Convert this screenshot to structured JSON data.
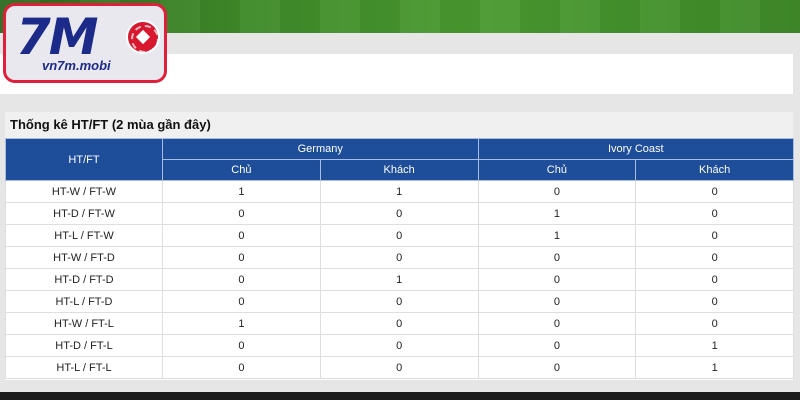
{
  "logo": {
    "mark": "7M",
    "domain": "vn7m.mobi"
  },
  "panel": {
    "title": "Thống kê HT/FT (2 mùa gần đây)"
  },
  "table": {
    "row_header": "HT/FT",
    "teams": [
      "Germany",
      "Ivory Coast"
    ],
    "sub_headers": [
      "Chủ",
      "Khách",
      "Chủ",
      "Khách"
    ],
    "rows": [
      {
        "label": "HT-W / FT-W",
        "values": [
          "1",
          "1",
          "0",
          "0"
        ]
      },
      {
        "label": "HT-D / FT-W",
        "values": [
          "0",
          "0",
          "1",
          "0"
        ]
      },
      {
        "label": "HT-L / FT-W",
        "values": [
          "0",
          "0",
          "1",
          "0"
        ]
      },
      {
        "label": "HT-W / FT-D",
        "values": [
          "0",
          "0",
          "0",
          "0"
        ]
      },
      {
        "label": "HT-D / FT-D",
        "values": [
          "0",
          "1",
          "0",
          "0"
        ]
      },
      {
        "label": "HT-L / FT-D",
        "values": [
          "0",
          "0",
          "0",
          "0"
        ]
      },
      {
        "label": "HT-W / FT-L",
        "values": [
          "1",
          "0",
          "0",
          "0"
        ]
      },
      {
        "label": "HT-D / FT-L",
        "values": [
          "0",
          "0",
          "0",
          "1"
        ]
      },
      {
        "label": "HT-L / FT-L",
        "values": [
          "0",
          "0",
          "0",
          "1"
        ]
      }
    ]
  },
  "colors": {
    "header_blue": "#1e4e9a",
    "logo_red": "#e0203a",
    "banner_green": "#3f8a29"
  }
}
